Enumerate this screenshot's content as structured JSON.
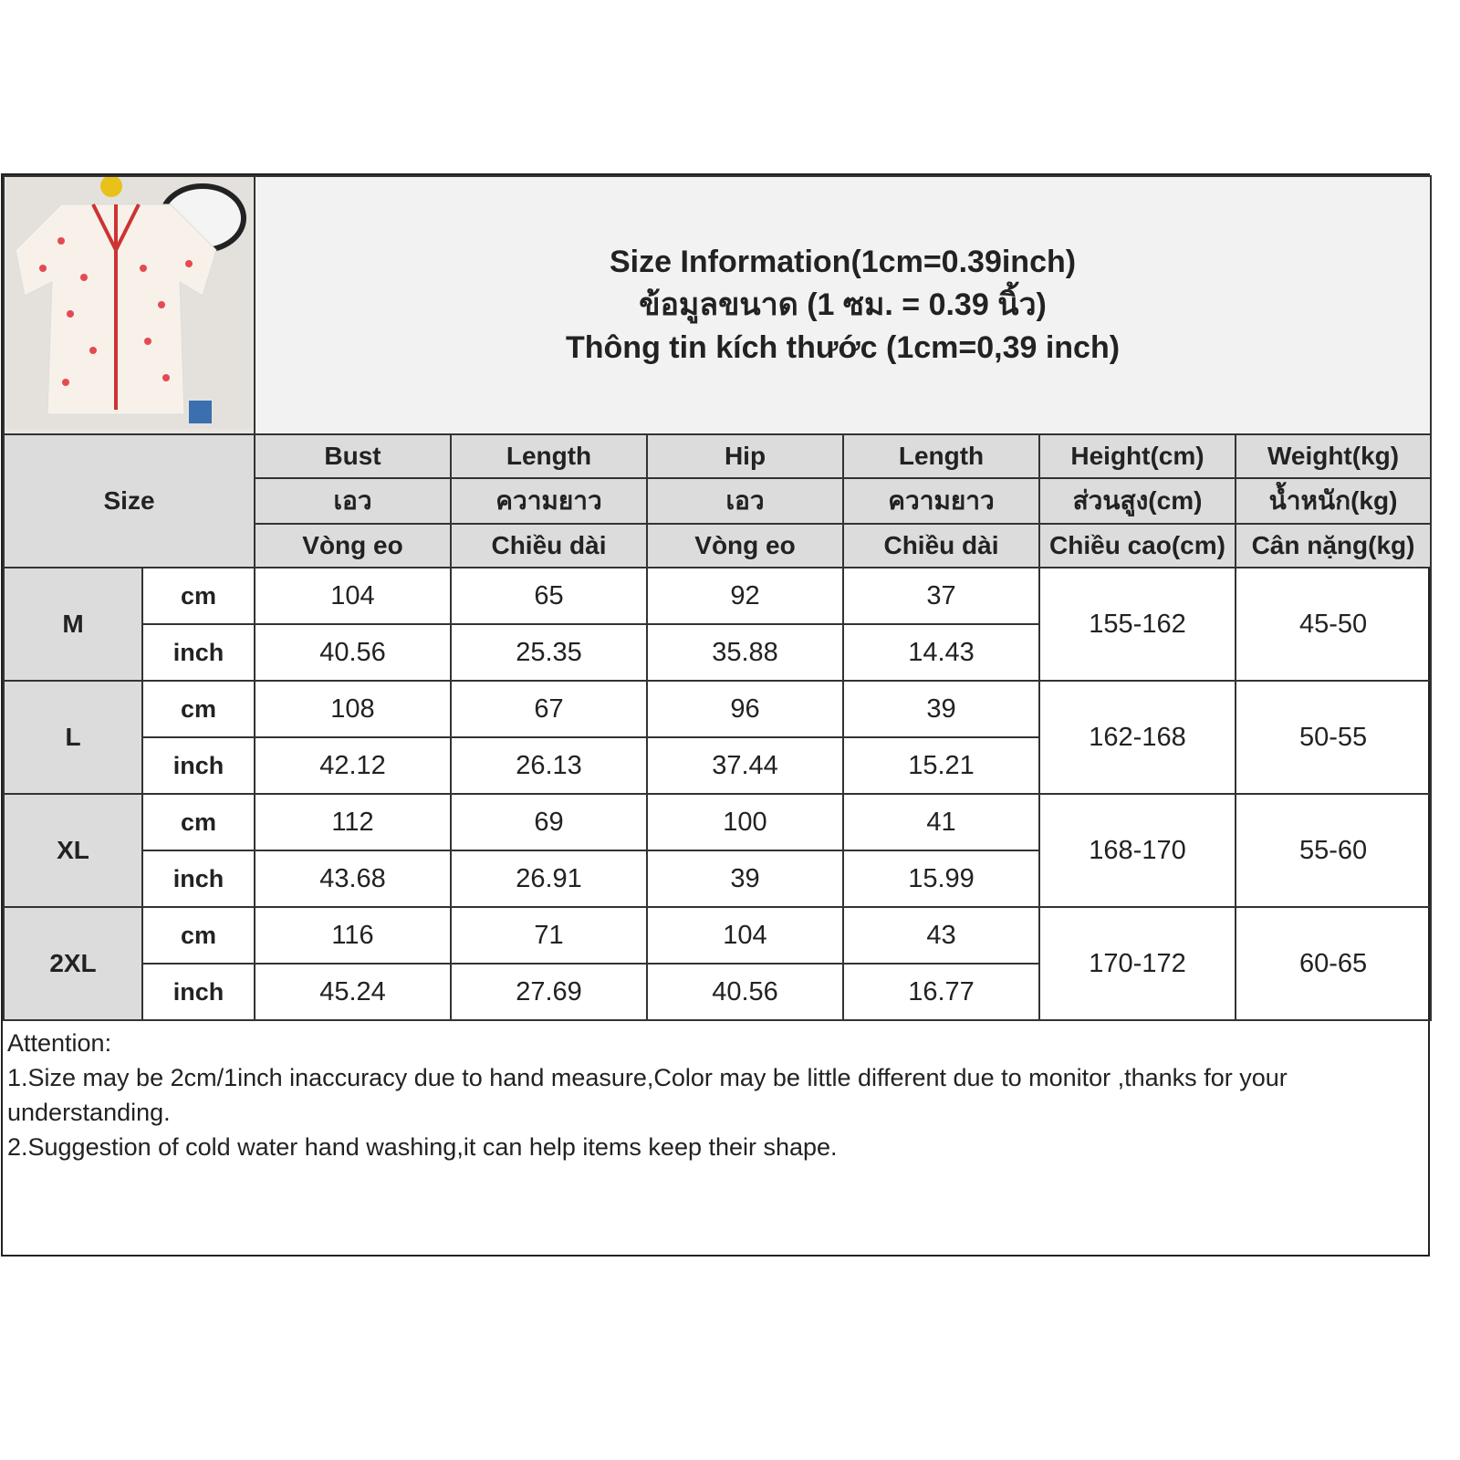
{
  "title_lines": [
    "Size Information(1cm=0.39inch)",
    "ข้อมูลขนาด (1 ซม. = 0.39 นิ้ว)",
    "Thông tin kích thước (1cm=0,39 inch)"
  ],
  "size_header": "Size",
  "columns": [
    [
      "Bust",
      "เอว",
      "Vòng eo"
    ],
    [
      "Length",
      "ความยาว",
      "Chiều dài"
    ],
    [
      "Hip",
      "เอว",
      "Vòng eo"
    ],
    [
      "Length",
      "ความยาว",
      "Chiều dài"
    ],
    [
      "Height(cm)",
      "ส่วนสูง(cm)",
      "Chiều cao(cm)"
    ],
    [
      "Weight(kg)",
      "น้ำหนัก(kg)",
      "Cân nặng(kg)"
    ]
  ],
  "rows": [
    {
      "size": "M",
      "cm": [
        "104",
        "65",
        "92",
        "37"
      ],
      "inch": [
        "40.56",
        "25.35",
        "35.88",
        "14.43"
      ],
      "height": "155-162",
      "weight": "45-50"
    },
    {
      "size": "L",
      "cm": [
        "108",
        "67",
        "96",
        "39"
      ],
      "inch": [
        "42.12",
        "26.13",
        "37.44",
        "15.21"
      ],
      "height": "162-168",
      "weight": "50-55"
    },
    {
      "size": "XL",
      "cm": [
        "112",
        "69",
        "100",
        "41"
      ],
      "inch": [
        "43.68",
        "26.91",
        "39",
        "15.99"
      ],
      "height": "168-170",
      "weight": "55-60"
    },
    {
      "size": "2XL",
      "cm": [
        "116",
        "71",
        "104",
        "43"
      ],
      "inch": [
        "45.24",
        "27.69",
        "40.56",
        "16.77"
      ],
      "height": "170-172",
      "weight": "60-65"
    }
  ],
  "unit_cm": "cm",
  "unit_inch": "inch",
  "notes": [
    "Attention:",
    "1.Size may be 2cm/1inch inaccuracy due to hand measure,Color may be little different due to monitor ,thanks for your understanding.",
    "2.Suggestion of cold water hand washing,it can help items keep their shape."
  ]
}
